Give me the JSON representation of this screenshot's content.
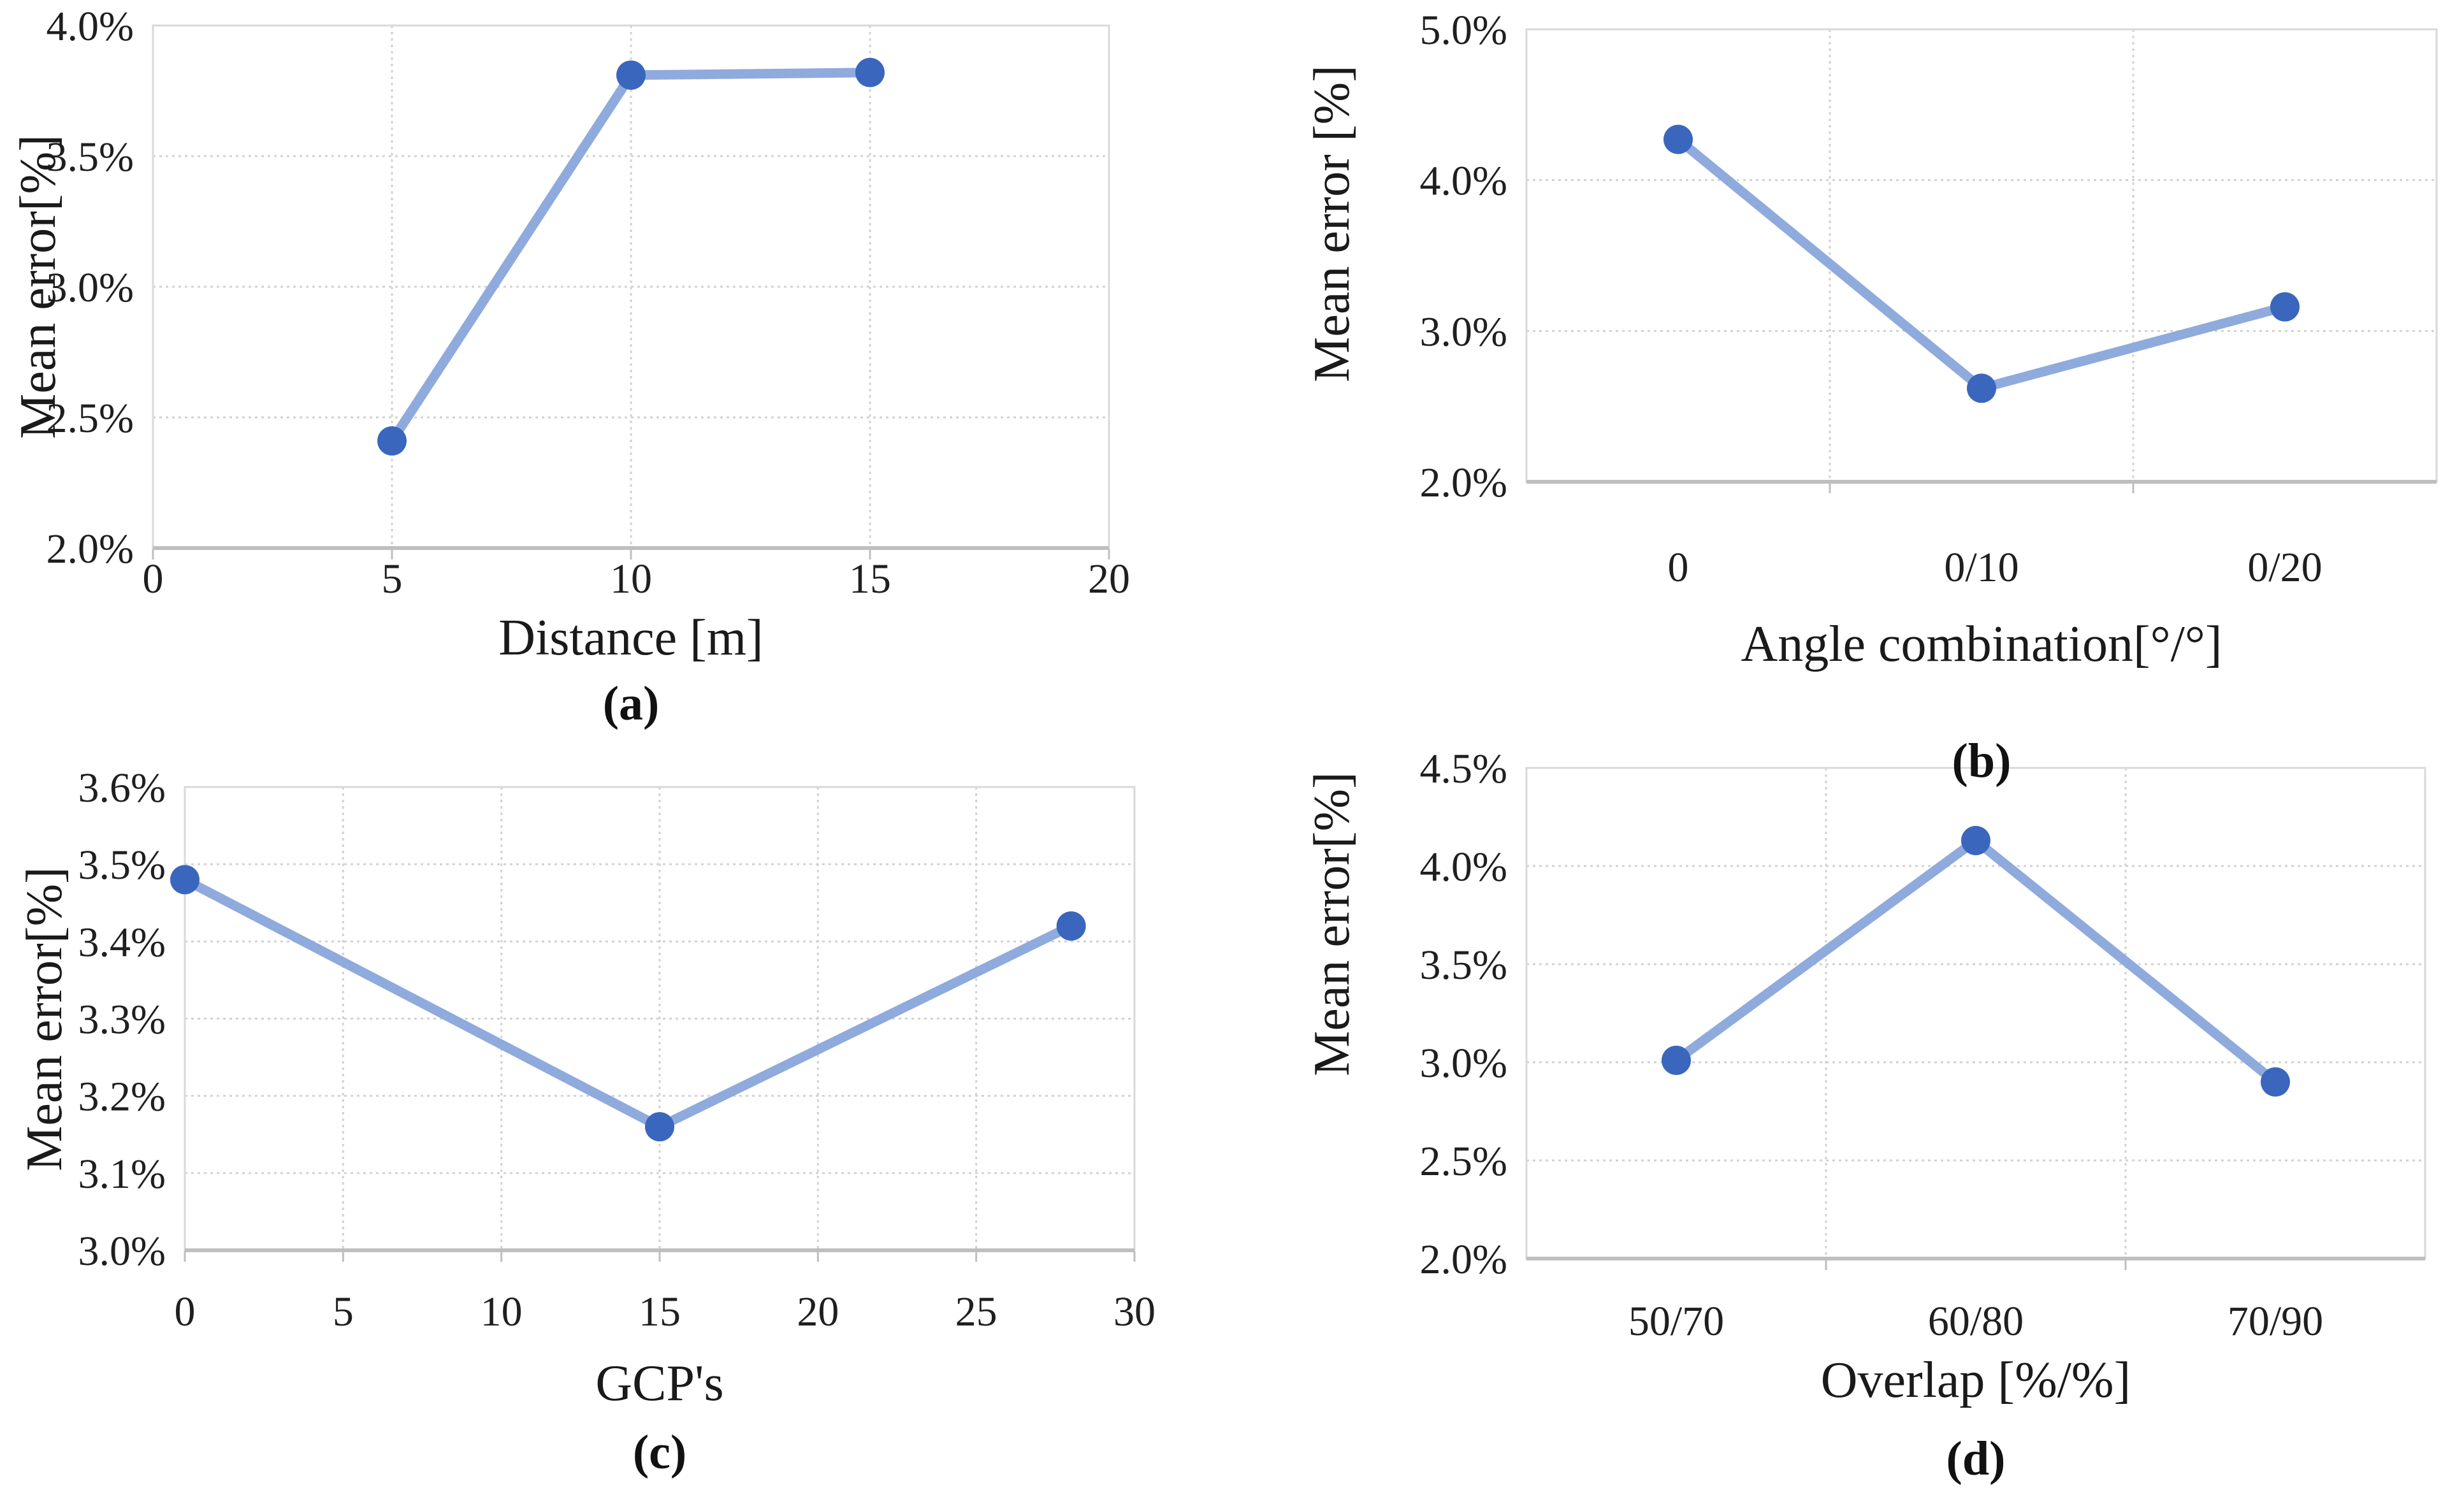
{
  "figure": {
    "background": "#ffffff",
    "description": "Four line charts of mean error versus flight parameters, subfigures a-d"
  },
  "style": {
    "line_color": "#8FAADC",
    "marker_color": "#3A67BD",
    "grid_color": "#D2D2D2",
    "axis_color": "#BFBFBF",
    "border_color": "#D9D9D9",
    "text_color": "#1A1A1A"
  },
  "chart_data": [
    {
      "id": "a",
      "type": "line",
      "title": "",
      "ylabel": "Mean error[%]",
      "xlabel": "Distance [m]",
      "caption": "(a)",
      "x_type": "numeric",
      "xlim": [
        0,
        20
      ],
      "xticks": [
        0,
        5,
        10,
        15,
        20
      ],
      "x": [
        5,
        10,
        15
      ],
      "values": [
        2.41,
        3.81,
        3.82
      ],
      "ylim": [
        2.0,
        4.0
      ],
      "yticks": [
        2.0,
        2.5,
        3.0,
        3.5,
        4.0
      ],
      "ytick_suffix": "%",
      "grid": true,
      "legend": "none"
    },
    {
      "id": "b",
      "type": "line",
      "title": "",
      "ylabel": "Mean error [%]",
      "xlabel": "Angle combination[°/°]",
      "caption": "(b)",
      "x_type": "category",
      "categories": [
        "0",
        "0/10",
        "0/20"
      ],
      "values": [
        4.27,
        2.62,
        3.16
      ],
      "ylim": [
        2.0,
        5.0
      ],
      "yticks": [
        2.0,
        3.0,
        4.0,
        5.0
      ],
      "ytick_suffix": "%",
      "grid": true,
      "legend": "none"
    },
    {
      "id": "c",
      "type": "line",
      "title": "",
      "ylabel": "Mean error[%]",
      "xlabel": "GCP's",
      "caption": "(c)",
      "x_type": "numeric",
      "xlim": [
        0,
        30
      ],
      "xticks": [
        0,
        5,
        10,
        15,
        20,
        25,
        30
      ],
      "x": [
        0,
        15,
        28
      ],
      "values": [
        3.48,
        3.16,
        3.42
      ],
      "ylim": [
        3.0,
        3.6
      ],
      "yticks": [
        3.0,
        3.1,
        3.2,
        3.3,
        3.4,
        3.5,
        3.6
      ],
      "ytick_suffix": "%",
      "grid": true,
      "legend": "none"
    },
    {
      "id": "d",
      "type": "line",
      "title": "",
      "ylabel": "Mean error[%]",
      "xlabel": "Overlap [%/%]",
      "caption": "(d)",
      "x_type": "category",
      "categories": [
        "50/70",
        "60/80",
        "70/90"
      ],
      "values": [
        3.01,
        4.13,
        2.9
      ],
      "ylim": [
        2.0,
        4.5
      ],
      "yticks": [
        2.0,
        2.5,
        3.0,
        3.5,
        4.0,
        4.5
      ],
      "ytick_suffix": "%",
      "grid": true,
      "legend": "none"
    }
  ]
}
